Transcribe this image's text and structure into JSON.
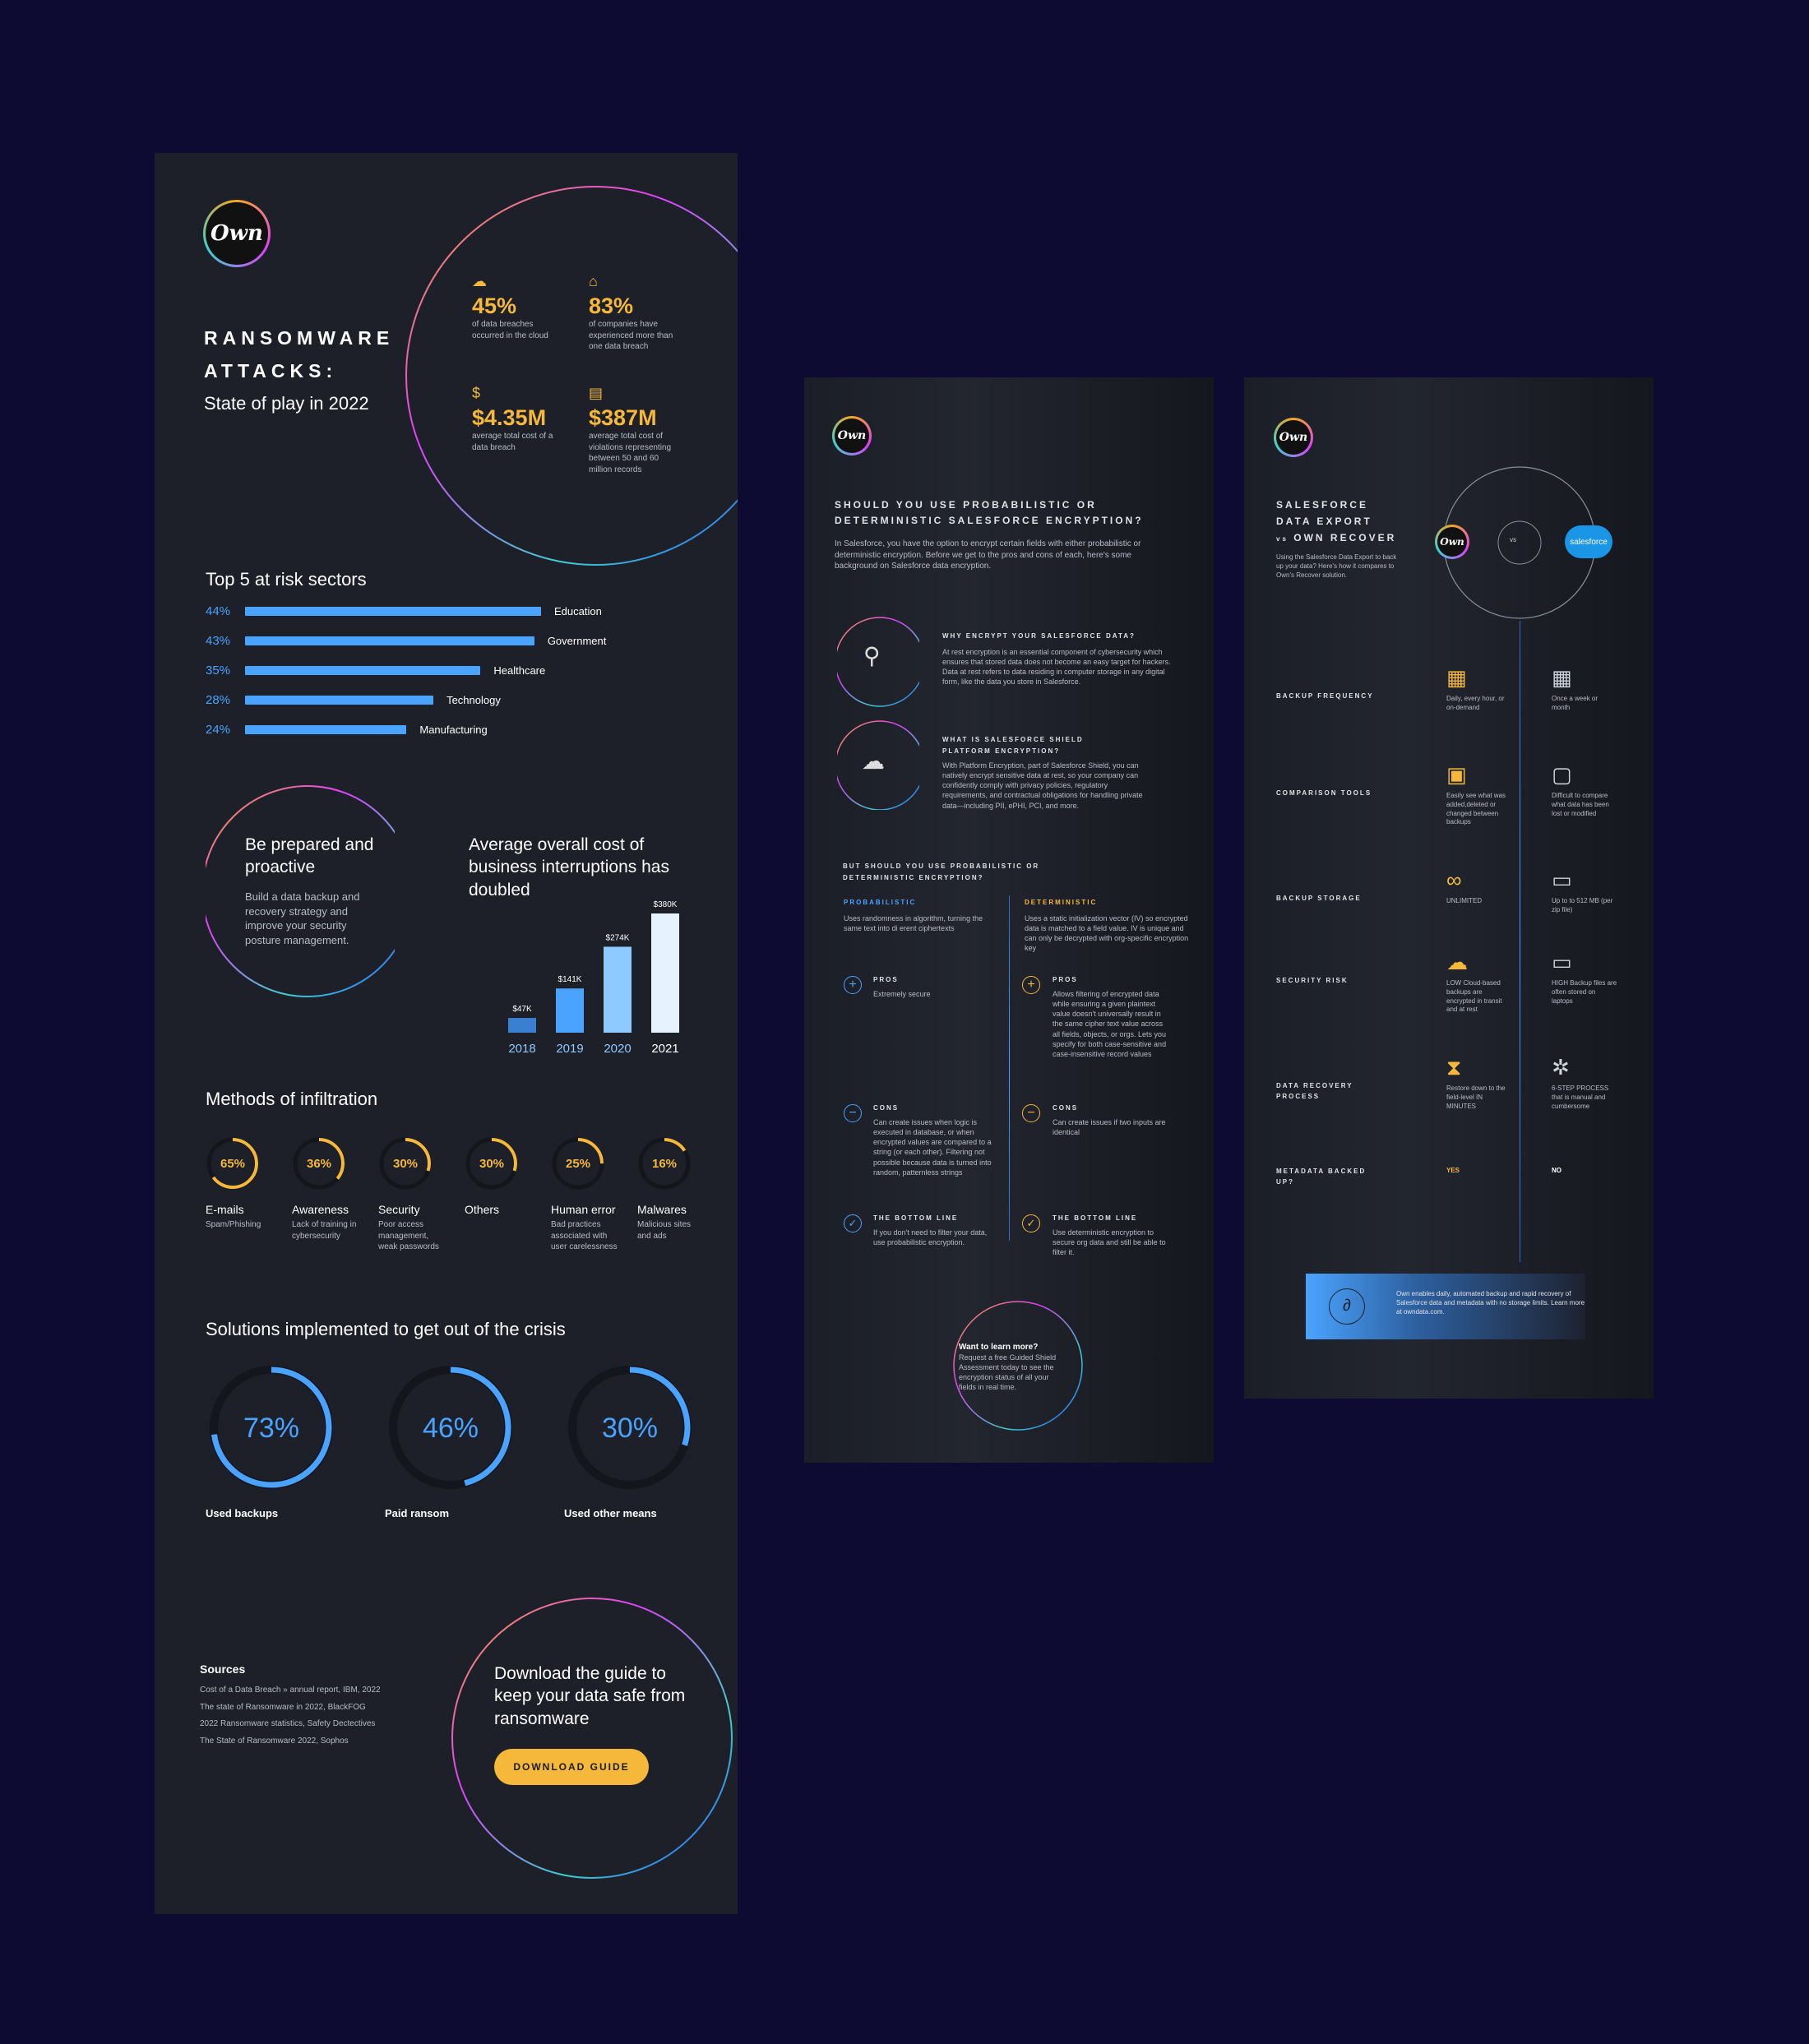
{
  "colors": {
    "background": "#0e0b33",
    "panel": "#1d2029",
    "accent_yellow": "#f5b83a",
    "accent_blue": "#4aa3ff"
  },
  "brand": {
    "logo_text": "Own"
  },
  "p1": {
    "title_line1": "RANSOMWARE",
    "title_line2": "ATTACKS:",
    "subtitle": "State of play in 2022",
    "stats": [
      {
        "value": "45%",
        "desc": "of data breaches occurred in the cloud",
        "icon": "cloud-alert-icon"
      },
      {
        "value": "83%",
        "desc": "of companies have experienced more than one data breach",
        "icon": "house-alert-icon"
      },
      {
        "value": "$4.35M",
        "desc": "average total cost of a data breach",
        "icon": "dollar-icon"
      },
      {
        "value": "$387M",
        "desc": "average total cost of violations representing between 50 and 60 million records",
        "icon": "dollar-doc-icon"
      }
    ],
    "sectors_title": "Top 5 at risk sectors",
    "sectors": [
      {
        "pct": "44%",
        "name": "Education",
        "value": 44
      },
      {
        "pct": "43%",
        "name": "Government",
        "value": 43
      },
      {
        "pct": "35%",
        "name": "Healthcare",
        "value": 35
      },
      {
        "pct": "28%",
        "name": "Technology",
        "value": 28
      },
      {
        "pct": "24%",
        "name": "Manufacturing",
        "value": 24
      }
    ],
    "prepared_title": "Be prepared and proactive",
    "prepared_text": "Build a data backup and recovery strategy and improve your security posture management.",
    "cost_title": "Average overall cost of business interruptions has doubled",
    "methods_title": "Methods of infiltration",
    "methods": [
      {
        "pct": "65%",
        "value": 65,
        "name": "E-mails",
        "desc": "Spam/Phishing"
      },
      {
        "pct": "36%",
        "value": 36,
        "name": "Awareness",
        "desc": "Lack of training in cybersecurity"
      },
      {
        "pct": "30%",
        "value": 30,
        "name": "Security",
        "desc": "Poor access management, weak passwords"
      },
      {
        "pct": "30%",
        "value": 30,
        "name": "Others",
        "desc": ""
      },
      {
        "pct": "25%",
        "value": 25,
        "name": "Human error",
        "desc": "Bad practices associated with user carelessness"
      },
      {
        "pct": "16%",
        "value": 16,
        "name": "Malwares",
        "desc": "Malicious sites and ads"
      }
    ],
    "solutions_title": "Solutions implemented to get out of the crisis",
    "solutions": [
      {
        "pct": "73%",
        "value": 73,
        "name": "Used backups"
      },
      {
        "pct": "46%",
        "value": 46,
        "name": "Paid ransom"
      },
      {
        "pct": "30%",
        "value": 30,
        "name": "Used other means"
      }
    ],
    "sources_title": "Sources",
    "sources": [
      "Cost of a Data Breach » annual report, IBM, 2022",
      "The state of Ransomware in 2022, BlackFOG",
      "2022 Ransomware statistics, Safety Dectectives",
      "The State of Ransomware 2022, Sophos"
    ],
    "download_title": "Download the guide to keep your data safe from ransomware",
    "download_button": "DOWNLOAD GUIDE"
  },
  "chart_data": {
    "type": "bar",
    "categories": [
      "2018",
      "2019",
      "2020",
      "2021"
    ],
    "values": [
      47,
      141,
      274,
      380
    ],
    "data_labels": [
      "$47K",
      "$141K",
      "$274K",
      "$380K"
    ],
    "title": "Average overall cost of business interruptions has doubled",
    "ylim": [
      0,
      380
    ]
  },
  "p2": {
    "title": "SHOULD YOU USE PROBABILISTIC OR DETERMINISTIC SALESFORCE ENCRYPTION?",
    "intro": "In Salesforce, you have the option to encrypt certain fields with either probabilistic or deterministic encryption. Before we get to the pros and cons of each, here's some background on Salesforce data encryption.",
    "q1_title": "WHY ENCRYPT YOUR SALESFORCE DATA?",
    "q1_text": "At rest encryption is an essential component of cybersecurity which ensures that stored data does not become an easy target for hackers. Data at rest refers to data residing in computer storage in any digital form, like the data you store in Salesforce.",
    "q2_title": "WHAT IS SALESFORCE SHIELD PLATFORM ENCRYPTION?",
    "q2_text": "With Platform Encryption, part of Salesforce Shield, you can natively encrypt sensitive data at rest, so your company can confidently comply with privacy policies, regulatory requirements, and contractual obligations for handling private data—including PII, ePHI, PCI, and more.",
    "compare_title": "BUT SHOULD YOU USE PROBABILISTIC OR DETERMINISTIC ENCRYPTION?",
    "prob_head": "PROBABILISTIC",
    "prob_desc": "Uses randomness in algorithm, turning the same text into di erent ciphertexts",
    "det_head": "DETERMINISTIC",
    "det_desc": "Uses a static initialization vector (IV) so encrypted data is matched to a field value. IV is unique and can only be decrypted with org-specific encryption key",
    "pros_label": "PROS",
    "cons_label": "CONS",
    "bottom_label": "THE BOTTOM LINE",
    "prob_pros": "Extremely secure",
    "det_pros": "Allows filtering of encrypted data while ensuring a given plaintext value doesn't universally result in the same cipher text value across all fields, objects, or orgs. Lets you specify for both case-sensitive and case-insensitive record values",
    "prob_cons": "Can create issues when logic is executed in database, or when encrypted values are compared to a string (or each other). Filtering not possible because data is turned into random, patternless strings",
    "det_cons": "Can create issues if two inputs are identical",
    "prob_bottom": "If you don't need to filter your data, use probabilistic encryption.",
    "det_bottom": "Use deterministic encryption to secure org data and still be able to filter it.",
    "learn_title": "Want to learn more?",
    "learn_text": "Request a free Guided Shield Assessment today to see the encryption status of all your fields in real time."
  },
  "p3": {
    "title_line1": "SALESFORCE",
    "title_line2": "DATA EXPORT",
    "title_vs": "vs",
    "title_line3": "OWN RECOVER",
    "intro": "Using the Salesforce Data Export to back up your data? Here's how it compares to Own's Recover solution.",
    "vs_label": "vs",
    "salesforce_label": "salesforce",
    "rows": [
      {
        "label": "BACKUP FREQUENCY",
        "own": "Daily, every hour, or on-demand",
        "sf": "Once a week or month",
        "own_icon": "calendar-check-icon",
        "sf_icon": "calendar-check-icon"
      },
      {
        "label": "COMPARISON TOOLS",
        "own": "Easily see what was added,deleted or changed between backups",
        "sf": "Difficult to compare what data has been lost or modified",
        "own_icon": "document-check-icon",
        "sf_icon": "document-alert-icon"
      },
      {
        "label": "BACKUP STORAGE",
        "own": "UNLIMITED",
        "sf": "Up to to 512 MB (per zip file)",
        "own_icon": "infinity-icon",
        "sf_icon": "archive-icon"
      },
      {
        "label": "SECURITY RISK",
        "own": "LOW Cloud-based backups are encrypted in transit and at rest",
        "sf": "HIGH Backup files are often stored on laptops",
        "own_icon": "cloud-shield-icon",
        "sf_icon": "laptop-alert-icon"
      },
      {
        "label": "DATA RECOVERY PROCESS",
        "own": "Restore down to the field-level IN MINUTES",
        "sf": "6-STEP PROCESS that is manual and cumbersome",
        "own_icon": "hourglass-icon",
        "sf_icon": "gear-alert-icon"
      },
      {
        "label": "METADATA BACKED UP?",
        "own": "YES",
        "sf": "NO",
        "own_icon": "",
        "sf_icon": ""
      }
    ],
    "footer_text": "Own enables daily, automated backup and rapid recovery of Salesforce data and metadata with no storage limits. Learn more at owndata.com."
  }
}
